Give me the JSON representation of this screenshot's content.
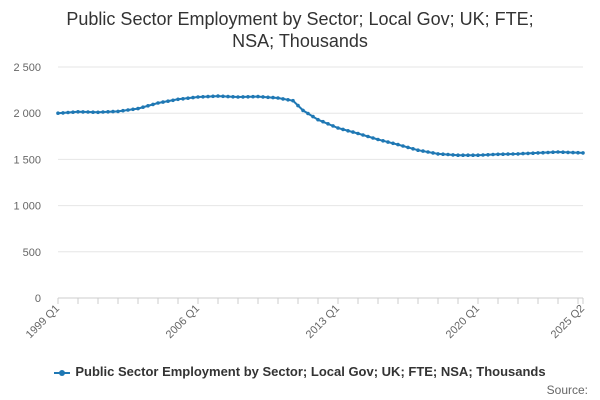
{
  "chart_data": {
    "type": "line",
    "title_lines": [
      "Public Sector Employment by Sector; Local Gov; UK; FTE;",
      "NSA; Thousands"
    ],
    "xlabel": "",
    "ylabel": "",
    "ylim": [
      0,
      2500
    ],
    "yticks": [
      0,
      500,
      1000,
      1500,
      2000,
      2500
    ],
    "ytick_labels": [
      "0",
      "500",
      "1 000",
      "1 500",
      "2 000",
      "2 500"
    ],
    "x_range": [
      "1999 Q1",
      "2025 Q2"
    ],
    "xticks": [
      "1999 Q1",
      "2006 Q1",
      "2013 Q1",
      "2020 Q1",
      "2025 Q2"
    ],
    "grid": "horizontal",
    "legend_position": "bottom",
    "series": [
      {
        "name": "Public Sector Employment by Sector; Local Gov; UK; FTE; NSA; Thousands",
        "color": "#1f78b4",
        "points": [
          [
            "1999 Q1",
            2000
          ],
          [
            "2000 Q1",
            2015
          ],
          [
            "2001 Q1",
            2010
          ],
          [
            "2002 Q1",
            2020
          ],
          [
            "2003 Q1",
            2050
          ],
          [
            "2004 Q1",
            2110
          ],
          [
            "2005 Q1",
            2150
          ],
          [
            "2006 Q1",
            2175
          ],
          [
            "2007 Q1",
            2185
          ],
          [
            "2008 Q1",
            2175
          ],
          [
            "2009 Q1",
            2180
          ],
          [
            "2010 Q1",
            2165
          ],
          [
            "2010 Q4",
            2135
          ],
          [
            "2011 Q2",
            2030
          ],
          [
            "2012 Q1",
            1930
          ],
          [
            "2013 Q1",
            1840
          ],
          [
            "2014 Q1",
            1780
          ],
          [
            "2015 Q1",
            1715
          ],
          [
            "2016 Q1",
            1660
          ],
          [
            "2017 Q1",
            1600
          ],
          [
            "2018 Q1",
            1560
          ],
          [
            "2019 Q1",
            1545
          ],
          [
            "2020 Q1",
            1545
          ],
          [
            "2021 Q1",
            1555
          ],
          [
            "2022 Q1",
            1560
          ],
          [
            "2023 Q1",
            1570
          ],
          [
            "2024 Q1",
            1580
          ],
          [
            "2025 Q2",
            1570
          ]
        ]
      }
    ]
  },
  "source_label": "Source:"
}
